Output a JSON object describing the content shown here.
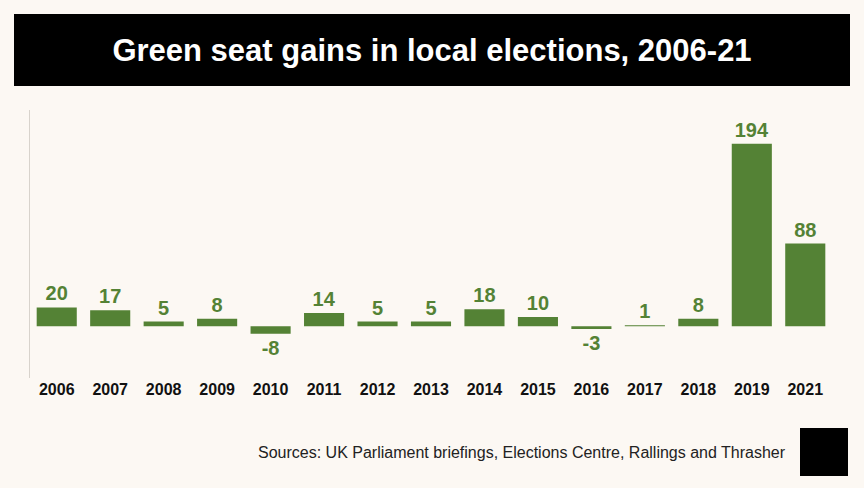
{
  "chart_data": {
    "type": "bar",
    "title": "Green seat gains in local elections, 2006-21",
    "categories": [
      "2006",
      "2007",
      "2008",
      "2009",
      "2010",
      "2011",
      "2012",
      "2013",
      "2014",
      "2015",
      "2016",
      "2017",
      "2018",
      "2019",
      "2021"
    ],
    "values": [
      20,
      17,
      5,
      8,
      -8,
      14,
      5,
      5,
      18,
      10,
      -3,
      1,
      8,
      194,
      88
    ],
    "color": "#548235",
    "ylim": [
      -55,
      230
    ],
    "grid": false,
    "data_labels": true,
    "tick_labels": "x",
    "source": "Sources: UK Parliament briefings, Elections Centre, Rallings and Thrasher"
  }
}
